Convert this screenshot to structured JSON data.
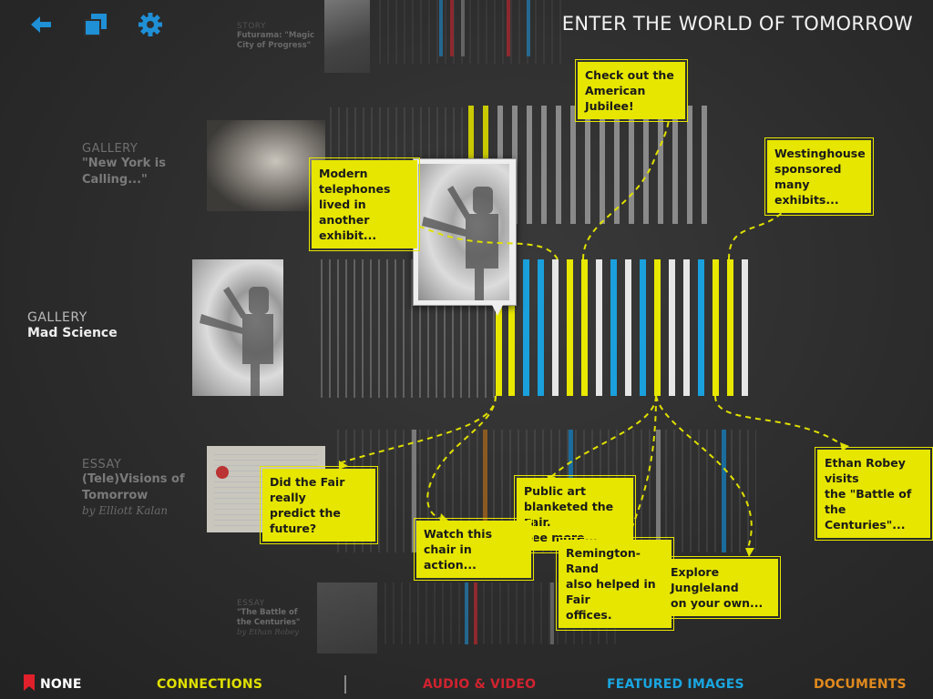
{
  "header": {
    "title": "ENTER THE WORLD OF TOMORROW",
    "icons": [
      "back-arrow-icon",
      "copy-icon",
      "gear-icon"
    ]
  },
  "sections": {
    "story": {
      "category": "STORY",
      "name": "Futurama: \"Magic City of Progress\""
    },
    "gallery_ny": {
      "category": "GALLERY",
      "name": "\"New York is Calling...\""
    },
    "gallery_mad": {
      "category": "GALLERY",
      "name": "Mad Science"
    },
    "essay_tv": {
      "category": "ESSAY",
      "name": "(Tele)Visions of Tomorrow",
      "author": "by Elliott Kalan"
    },
    "essay_battle": {
      "category": "ESSAY",
      "name": "\"The Battle of the Centuries\"",
      "author": "by Ethan Robey"
    }
  },
  "callouts": {
    "jubilee": "Check out the\nAmerican Jubilee!",
    "telephone": "Modern telephones\nlived in another\nexhibit...",
    "westinghouse": "Westinghouse\nsponsored many\nexhibits...",
    "predict": "Did the Fair really\npredict the future?",
    "publicart": "Public art\nblanketed the Fair.\nSee more...",
    "chair": "Watch this chair in\naction...",
    "remington": "Remington-Rand\nalso helped in Fair\noffices.",
    "jungleland": "Explore Jungleland\non your own...",
    "robey": "Ethan Robey visits\nthe \"Battle of the\nCenturies\"..."
  },
  "bottom_nav": {
    "none": "NONE",
    "connections": "CONNECTIONS",
    "audio_video": "AUDIO & VIDEO",
    "featured_images": "FEATURED IMAGES",
    "documents": "DOCUMENTS"
  },
  "colors": {
    "accent_blue": "#1f8fd6",
    "connections": "#e0e000",
    "audio_video": "#d0232f",
    "featured_images": "#1aa6e0",
    "documents": "#e08a1e",
    "bookmark": "#e0202a"
  }
}
